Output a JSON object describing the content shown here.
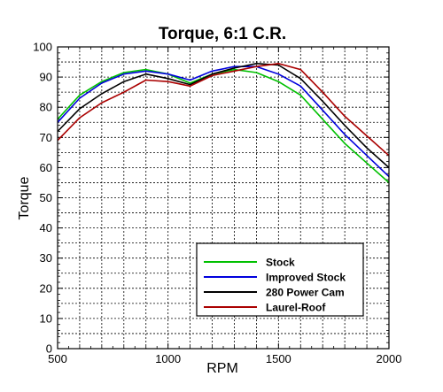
{
  "chart_data": {
    "type": "line",
    "title": "Torque, 6:1 C.R.",
    "xlabel": "RPM",
    "ylabel": "Torque",
    "xlim": [
      500,
      2000
    ],
    "ylim": [
      0,
      100
    ],
    "xticks": [
      500,
      1000,
      1500,
      2000
    ],
    "yticks": [
      0,
      10,
      20,
      30,
      40,
      50,
      60,
      70,
      80,
      90,
      100
    ],
    "grid": true,
    "legend_position": "lower-right",
    "series": [
      {
        "name": "Stock",
        "color": "#00c000",
        "x": [
          500,
          600,
          700,
          800,
          900,
          1000,
          1100,
          1200,
          1300,
          1400,
          1500,
          1600,
          1700,
          1800,
          1900,
          2000
        ],
        "y": [
          76,
          84,
          88.5,
          91.5,
          92.5,
          91,
          88,
          91,
          92.5,
          91.5,
          88.5,
          84,
          76,
          68,
          61.5,
          55
        ]
      },
      {
        "name": "Improved Stock",
        "color": "#0000dd",
        "x": [
          500,
          600,
          700,
          800,
          900,
          1000,
          1100,
          1200,
          1300,
          1400,
          1500,
          1600,
          1700,
          1800,
          1900,
          2000
        ],
        "y": [
          75,
          83,
          88,
          91,
          92,
          91,
          89,
          92,
          93.5,
          93.5,
          91,
          87,
          79,
          71,
          64,
          57
        ]
      },
      {
        "name": "280 Power Cam",
        "color": "#000000",
        "x": [
          500,
          600,
          700,
          800,
          900,
          1000,
          1100,
          1200,
          1300,
          1400,
          1500,
          1600,
          1700,
          1800,
          1900,
          2000
        ],
        "y": [
          72,
          79.5,
          84.5,
          88.5,
          91,
          89.5,
          87.5,
          91,
          93,
          94.5,
          94,
          89.5,
          82,
          74,
          66.5,
          60
        ]
      },
      {
        "name": "Laurel-Roof",
        "color": "#aa0000",
        "x": [
          500,
          600,
          700,
          800,
          900,
          1000,
          1100,
          1200,
          1300,
          1400,
          1500,
          1600,
          1700,
          1800,
          1900,
          2000
        ],
        "y": [
          69,
          76.5,
          81.5,
          85,
          89,
          88.5,
          87,
          90.5,
          92,
          93.5,
          94.5,
          92.5,
          85,
          77,
          70.5,
          64
        ]
      }
    ]
  }
}
